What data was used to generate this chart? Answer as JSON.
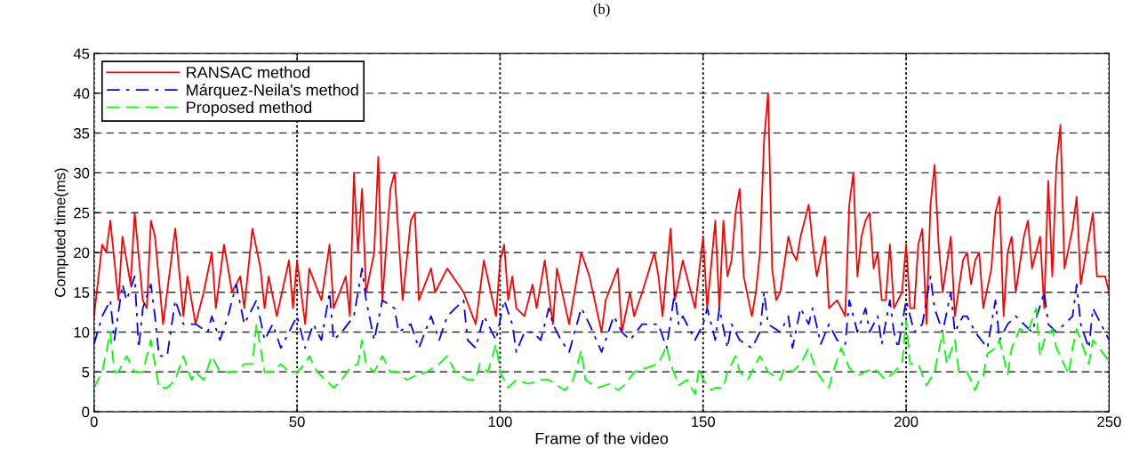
{
  "chart_data": {
    "type": "line",
    "title": "(b)",
    "xlabel": "Frame of the video",
    "ylabel": "Computed time(ms)",
    "xlim": [
      0,
      250
    ],
    "xticks": [
      0,
      50,
      100,
      150,
      200,
      250
    ],
    "ylim": [
      0,
      45
    ],
    "yticks": [
      0,
      5,
      10,
      15,
      20,
      25,
      30,
      35,
      40,
      45
    ],
    "grid": true,
    "legend": "top left",
    "marker": "none",
    "series": [
      {
        "name": "RANSAC method",
        "color": "#ff0000",
        "line_style": "solid",
        "x": [
          0,
          2,
          3,
          4,
          6,
          7,
          9,
          10,
          12,
          13,
          14,
          15,
          17,
          20,
          22,
          23,
          25,
          27,
          29,
          30,
          32,
          34,
          36,
          37,
          39,
          41,
          42,
          43,
          45,
          48,
          49,
          50,
          52,
          53,
          56,
          58,
          59,
          62,
          63,
          64,
          65,
          66,
          67,
          69,
          70,
          71,
          73,
          74,
          76,
          78,
          79,
          80,
          83,
          84,
          87,
          91,
          94,
          96,
          99,
          100,
          101,
          102,
          103,
          104,
          106,
          108,
          109,
          111,
          113,
          114,
          117,
          120,
          122,
          125,
          126,
          129,
          130,
          132,
          133,
          135,
          138,
          139,
          140,
          142,
          143,
          145,
          148,
          150,
          151,
          153,
          154,
          155,
          156,
          157,
          158,
          159,
          160,
          162,
          163,
          164,
          165,
          166,
          167,
          168,
          169,
          171,
          172,
          173,
          174,
          175,
          176,
          177,
          178,
          180,
          181,
          183,
          185,
          186,
          187,
          188,
          189,
          190,
          191,
          192,
          193,
          194,
          195,
          196,
          197,
          199,
          200,
          201,
          202,
          203,
          204,
          205,
          206,
          207,
          208,
          209,
          211,
          212,
          214,
          215,
          216,
          217,
          218,
          219,
          221,
          222,
          223,
          224,
          225,
          226,
          227,
          229,
          230,
          231,
          233,
          234,
          235,
          236,
          237,
          238,
          239,
          241,
          242,
          243,
          245,
          246,
          247,
          248,
          249,
          250
        ],
        "values": [
          12,
          21,
          20,
          24,
          14,
          22,
          16,
          25,
          14,
          13,
          24,
          22,
          11,
          23,
          12,
          17,
          11,
          15,
          20,
          13,
          21,
          15,
          17,
          13,
          23,
          18,
          13,
          17,
          12,
          19,
          13,
          19,
          11,
          18,
          14,
          21,
          13,
          17,
          12,
          30,
          20,
          28,
          15,
          20,
          32,
          14,
          28,
          30,
          14,
          24,
          25,
          14,
          18,
          15,
          18,
          15,
          11,
          19,
          12,
          19,
          21,
          14,
          17,
          13,
          12,
          16,
          13,
          19,
          11,
          18,
          11,
          20,
          17,
          10,
          14,
          18,
          10,
          15,
          12,
          15,
          20,
          17,
          12,
          23,
          14,
          19,
          13,
          22,
          13,
          24,
          13,
          24,
          17,
          19,
          25,
          28,
          17,
          12,
          15,
          20,
          34,
          40,
          18,
          14,
          15,
          22,
          20,
          19,
          22,
          24,
          26,
          21,
          17,
          22,
          13,
          14,
          12,
          26,
          30,
          17,
          22,
          24,
          25,
          18,
          20,
          14,
          14,
          21,
          13,
          15,
          21,
          13,
          13,
          21,
          23,
          11,
          26,
          31,
          21,
          15,
          22,
          12,
          19,
          20,
          16,
          19,
          20,
          13,
          18,
          25,
          27,
          12,
          20,
          22,
          15,
          22,
          24,
          18,
          22,
          13,
          29,
          17,
          31,
          36,
          18,
          23,
          27,
          16,
          22,
          25,
          17,
          17,
          17,
          15
        ]
      },
      {
        "name": "Márquez-Neila's method",
        "color": "#0000ff",
        "line_style": "dashdot",
        "x": [
          0,
          2,
          4,
          5,
          7,
          8,
          10,
          11,
          12,
          14,
          15,
          16,
          18,
          20,
          22,
          25,
          28,
          29,
          31,
          33,
          35,
          37,
          40,
          42,
          44,
          46,
          48,
          50,
          52,
          54,
          56,
          58,
          59,
          61,
          64,
          66,
          67,
          69,
          71,
          74,
          75,
          78,
          80,
          83,
          85,
          87,
          91,
          92,
          94,
          96,
          99,
          101,
          103,
          104,
          106,
          108,
          110,
          112,
          113,
          115,
          117,
          120,
          122,
          125,
          126,
          128,
          130,
          132,
          135,
          137,
          139,
          141,
          143,
          144,
          145,
          148,
          150,
          151,
          153,
          154,
          156,
          157,
          159,
          162,
          164,
          165,
          166,
          169,
          171,
          172,
          174,
          176,
          177,
          179,
          181,
          183,
          185,
          186,
          188,
          190,
          191,
          193,
          194,
          196,
          197,
          198,
          200,
          202,
          204,
          206,
          207,
          209,
          211,
          212,
          214,
          215,
          217,
          220,
          222,
          223,
          225,
          227,
          229,
          231,
          234,
          235,
          237,
          239,
          241,
          242,
          243,
          245,
          246,
          248,
          250
        ],
        "values": [
          8.5,
          12,
          14,
          9,
          16,
          14,
          17,
          8,
          13,
          16,
          12,
          7,
          7,
          14,
          11,
          11,
          10,
          12,
          9,
          12,
          16,
          11,
          14,
          9,
          11,
          8,
          10,
          12,
          8,
          11,
          9,
          15,
          9,
          10,
          12,
          18,
          14,
          9,
          14,
          13,
          10,
          11,
          8,
          12,
          9,
          12,
          14,
          9,
          8,
          12,
          9,
          14,
          11,
          7.5,
          10,
          10,
          9,
          13,
          11,
          9,
          7.5,
          13,
          11,
          7.5,
          9,
          12,
          10,
          9,
          11,
          11,
          11,
          8,
          15,
          11,
          12,
          9,
          11,
          13,
          9,
          13,
          8,
          11,
          9,
          8,
          10,
          15,
          11,
          10,
          12,
          8,
          13,
          11,
          13,
          8.5,
          11,
          9,
          8.5,
          14,
          10,
          13,
          10,
          12,
          8.5,
          14,
          10,
          8,
          14,
          10,
          11,
          17,
          13,
          10,
          15,
          10,
          12,
          12,
          10,
          8,
          14,
          9,
          11,
          12,
          11,
          10,
          15,
          11,
          10,
          11,
          12,
          16,
          11,
          8,
          13,
          11,
          9
        ]
      },
      {
        "name": "Proposed method",
        "color": "#00ff00",
        "line_style": "dashed",
        "x": [
          0,
          2,
          4,
          5,
          6,
          8,
          10,
          12,
          14,
          16,
          18,
          20,
          22,
          24,
          25,
          27,
          29,
          31,
          33,
          35,
          37,
          39,
          40,
          42,
          44,
          46,
          48,
          50,
          52,
          53,
          55,
          57,
          59,
          61,
          63,
          65,
          66,
          67,
          69,
          71,
          73,
          75,
          77,
          79,
          82,
          85,
          87,
          89,
          92,
          94,
          95,
          97,
          99,
          100,
          102,
          104,
          107,
          110,
          112,
          115,
          116,
          118,
          120,
          121,
          124,
          127,
          129,
          131,
          133,
          136,
          139,
          141,
          142,
          144,
          146,
          148,
          149,
          150,
          152,
          153,
          155,
          156,
          158,
          159,
          161,
          163,
          164,
          166,
          169,
          170,
          172,
          174,
          176,
          178,
          180,
          181,
          182,
          184,
          186,
          188,
          190,
          192,
          194,
          195,
          197,
          199,
          200,
          201,
          203,
          205,
          207,
          209,
          210,
          212,
          213,
          215,
          217,
          218,
          219,
          220,
          222,
          223,
          225,
          226,
          228,
          230,
          232,
          233,
          234,
          236,
          237,
          238,
          240,
          241,
          242,
          243,
          245,
          246,
          248,
          250
        ],
        "values": [
          3,
          5,
          10,
          5,
          5,
          7,
          5,
          5,
          9,
          3,
          3,
          4,
          7,
          4,
          5,
          4,
          7,
          5,
          5,
          5,
          6,
          6,
          11,
          5,
          5,
          6,
          5,
          5,
          6,
          7,
          5,
          4,
          3,
          4,
          5.5,
          6,
          9,
          6,
          5,
          7,
          5,
          5,
          4,
          4.5,
          5,
          6,
          7,
          5,
          4,
          4,
          6,
          5,
          8.5,
          5,
          3,
          4,
          3.5,
          4,
          4,
          3,
          2.7,
          4,
          7.7,
          4,
          3,
          3.5,
          2.7,
          3.5,
          5,
          5.5,
          6,
          8.3,
          6,
          3.3,
          4,
          2.2,
          5.5,
          4,
          2.7,
          3,
          3,
          5,
          7,
          5,
          4,
          6,
          7,
          5,
          4,
          5.5,
          5,
          6,
          8,
          5,
          3.5,
          3,
          5,
          8,
          5.5,
          4.5,
          5,
          5.5,
          4.5,
          4,
          5,
          6,
          11.5,
          6,
          6,
          3.3,
          5,
          10,
          6,
          9,
          5,
          5,
          2.7,
          4,
          4.5,
          7.3,
          8,
          9,
          4.7,
          8,
          10.4,
          10,
          13,
          7,
          9,
          10.4,
          8,
          7,
          4.7,
          8,
          10.4,
          9,
          6,
          9,
          7.7,
          6.3
        ]
      }
    ]
  }
}
